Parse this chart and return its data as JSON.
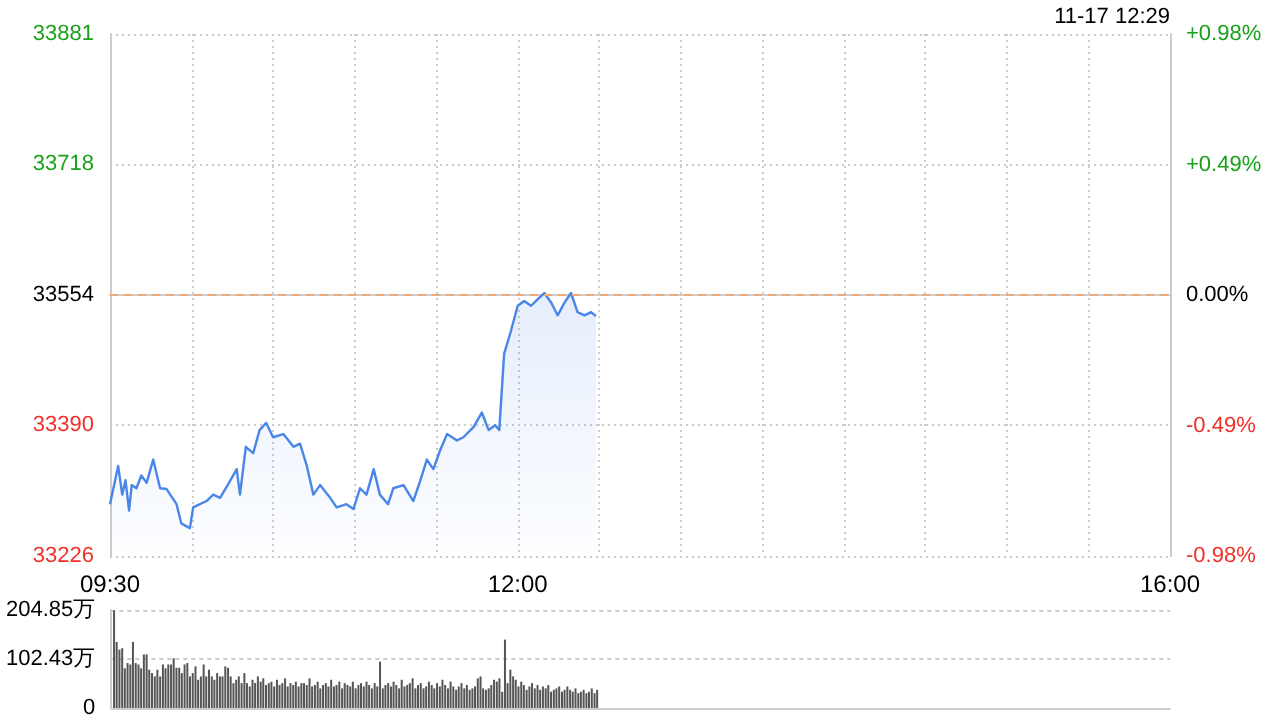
{
  "chart_data": [
    {
      "type": "area",
      "annotations": [
        "11-17 12:29"
      ],
      "grid": true,
      "marker": "none",
      "xlim": [
        9.5,
        16
      ],
      "xticks": [
        {
          "value": 9.5,
          "label": "09:30"
        },
        {
          "value": 10,
          "label": null
        },
        {
          "value": 10.5,
          "label": null
        },
        {
          "value": 11,
          "label": null
        },
        {
          "value": 11.5,
          "label": null
        },
        {
          "value": 12,
          "label": "12:00"
        },
        {
          "value": 12.5,
          "label": null
        },
        {
          "value": 13,
          "label": null
        },
        {
          "value": 13.5,
          "label": null
        },
        {
          "value": 14,
          "label": null
        },
        {
          "value": 14.5,
          "label": null
        },
        {
          "value": 15,
          "label": null
        },
        {
          "value": 15.5,
          "label": null
        },
        {
          "value": 16,
          "label": "16:00"
        }
      ],
      "ylim": [
        33226,
        33881
      ],
      "yticks": [
        33226,
        33390,
        33554,
        33718,
        33881
      ],
      "y2lim": [
        -0.98,
        0.98
      ],
      "y2ticks": [
        {
          "value": -0.98,
          "label": "-0.98%"
        },
        {
          "value": -0.49,
          "label": "-0.49%"
        },
        {
          "value": 0,
          "label": "0.00%"
        },
        {
          "value": 0.49,
          "label": "+0.49%"
        },
        {
          "value": 0.98,
          "label": "+0.98%"
        }
      ],
      "ref_lines": [
        {
          "axis": "y",
          "value": 33554,
          "color": "#f0a878",
          "line_style": "dashed"
        }
      ],
      "series": [
        {
          "color": "#4a86e8",
          "x": [
            9.5,
            9.55,
            9.575,
            9.595,
            9.617,
            9.633,
            9.662,
            9.692,
            9.725,
            9.765,
            9.807,
            9.847,
            9.908,
            9.937,
            9.99,
            10.01,
            10.092,
            10.133,
            10.175,
            10.233,
            10.277,
            10.297,
            10.333,
            10.378,
            10.417,
            10.458,
            10.5,
            10.563,
            10.625,
            10.665,
            10.707,
            10.747,
            10.788,
            10.85,
            10.89,
            10.95,
            10.993,
            11.033,
            11.073,
            11.117,
            11.155,
            11.205,
            11.237,
            11.3,
            11.36,
            11.4,
            11.443,
            11.483,
            11.525,
            11.567,
            11.628,
            11.667,
            11.73,
            11.78,
            11.822,
            11.862,
            11.887,
            11.917,
            11.958,
            12,
            12.04,
            12.082,
            12.122,
            12.163,
            12.205,
            12.245,
            12.287,
            12.327,
            12.367,
            12.41,
            12.45,
            12.48
          ],
          "values": [
            33291,
            33339,
            33303,
            33321,
            33283,
            33315,
            33311,
            33327,
            33318,
            33347,
            33311,
            33310,
            33291,
            33267,
            33261,
            33287,
            33295,
            33303,
            33299,
            33319,
            33335,
            33303,
            33363,
            33355,
            33384,
            33393,
            33375,
            33379,
            33363,
            33367,
            33339,
            33303,
            33315,
            33299,
            33287,
            33291,
            33285,
            33311,
            33303,
            33335,
            33303,
            33291,
            33311,
            33315,
            33295,
            33319,
            33347,
            33335,
            33359,
            33379,
            33371,
            33375,
            33388,
            33406,
            33384,
            33390,
            33384,
            33480,
            33508,
            33540,
            33546,
            33540,
            33548,
            33556,
            33544,
            33528,
            33544,
            33556,
            33532,
            33528,
            33532,
            33527
          ]
        }
      ]
    },
    {
      "type": "bar",
      "tick_labels": "y",
      "grid": "y",
      "xlim": [
        9.5,
        16
      ],
      "ylim": [
        0,
        204.85
      ],
      "yticks": [
        0,
        {
          "value": 102.43,
          "label": "102.43万"
        },
        {
          "value": 204.85,
          "label": "204.85万"
        }
      ],
      "series": [
        {
          "color": "#555555",
          "x": [
            9.517,
            9.533,
            9.55,
            9.567,
            9.583,
            9.6,
            9.617,
            9.633,
            9.65,
            9.667,
            9.683,
            9.7,
            9.717,
            9.733,
            9.75,
            9.767,
            9.783,
            9.8,
            9.817,
            9.833,
            9.85,
            9.867,
            9.883,
            9.9,
            9.917,
            9.933,
            9.95,
            9.967,
            9.983,
            10,
            10.017,
            10.033,
            10.05,
            10.067,
            10.083,
            10.1,
            10.117,
            10.133,
            10.15,
            10.167,
            10.183,
            10.2,
            10.217,
            10.233,
            10.25,
            10.267,
            10.283,
            10.3,
            10.317,
            10.333,
            10.35,
            10.367,
            10.383,
            10.4,
            10.417,
            10.433,
            10.45,
            10.467,
            10.483,
            10.5,
            10.517,
            10.533,
            10.55,
            10.567,
            10.583,
            10.6,
            10.617,
            10.633,
            10.65,
            10.667,
            10.683,
            10.7,
            10.717,
            10.733,
            10.75,
            10.767,
            10.783,
            10.8,
            10.817,
            10.833,
            10.85,
            10.867,
            10.883,
            10.9,
            10.917,
            10.933,
            10.95,
            10.967,
            10.983,
            11,
            11.017,
            11.033,
            11.05,
            11.067,
            11.083,
            11.1,
            11.117,
            11.133,
            11.15,
            11.167,
            11.183,
            11.2,
            11.217,
            11.233,
            11.25,
            11.267,
            11.283,
            11.3,
            11.317,
            11.333,
            11.35,
            11.367,
            11.383,
            11.4,
            11.417,
            11.433,
            11.45,
            11.467,
            11.483,
            11.5,
            11.517,
            11.533,
            11.55,
            11.567,
            11.583,
            11.6,
            11.617,
            11.633,
            11.65,
            11.667,
            11.683,
            11.7,
            11.717,
            11.733,
            11.75,
            11.767,
            11.783,
            11.8,
            11.817,
            11.833,
            11.85,
            11.867,
            11.883,
            11.9,
            11.917,
            11.933,
            11.95,
            11.967,
            11.983,
            12,
            12.017,
            12.033,
            12.05,
            12.067,
            12.083,
            12.1,
            12.117,
            12.133,
            12.15,
            12.167,
            12.183,
            12.2,
            12.217,
            12.233,
            12.25,
            12.267,
            12.283,
            12.3,
            12.317,
            12.333,
            12.35,
            12.367,
            12.383,
            12.4,
            12.417,
            12.433,
            12.45,
            12.467,
            12.483
          ],
          "values": [
            204,
            138,
            122,
            125,
            83,
            94,
            91,
            138,
            94,
            91,
            83,
            112,
            112,
            80,
            73,
            66,
            80,
            66,
            91,
            83,
            91,
            91,
            104,
            84,
            84,
            73,
            91,
            94,
            66,
            73,
            87,
            59,
            66,
            91,
            66,
            80,
            66,
            59,
            73,
            66,
            66,
            87,
            84,
            66,
            52,
            59,
            66,
            52,
            73,
            52,
            45,
            59,
            52,
            66,
            55,
            62,
            48,
            52,
            55,
            45,
            59,
            48,
            52,
            62,
            45,
            52,
            48,
            55,
            45,
            52,
            52,
            48,
            62,
            45,
            48,
            55,
            41,
            48,
            52,
            45,
            59,
            45,
            48,
            55,
            41,
            52,
            48,
            45,
            55,
            41,
            48,
            52,
            45,
            55,
            48,
            41,
            52,
            45,
            97,
            41,
            48,
            52,
            45,
            55,
            48,
            41,
            59,
            45,
            48,
            52,
            62,
            41,
            48,
            52,
            41,
            45,
            55,
            48,
            41,
            52,
            45,
            59,
            48,
            41,
            55,
            45,
            38,
            45,
            52,
            41,
            48,
            38,
            41,
            45,
            62,
            66,
            41,
            38,
            41,
            48,
            59,
            55,
            62,
            34,
            143,
            52,
            80,
            66,
            59,
            45,
            55,
            48,
            38,
            45,
            52,
            41,
            48,
            38,
            45,
            41,
            48,
            34,
            38,
            41,
            45,
            34,
            38,
            45,
            38,
            34,
            41,
            31,
            34,
            38,
            31,
            34,
            41,
            31,
            38
          ]
        }
      ]
    }
  ]
}
